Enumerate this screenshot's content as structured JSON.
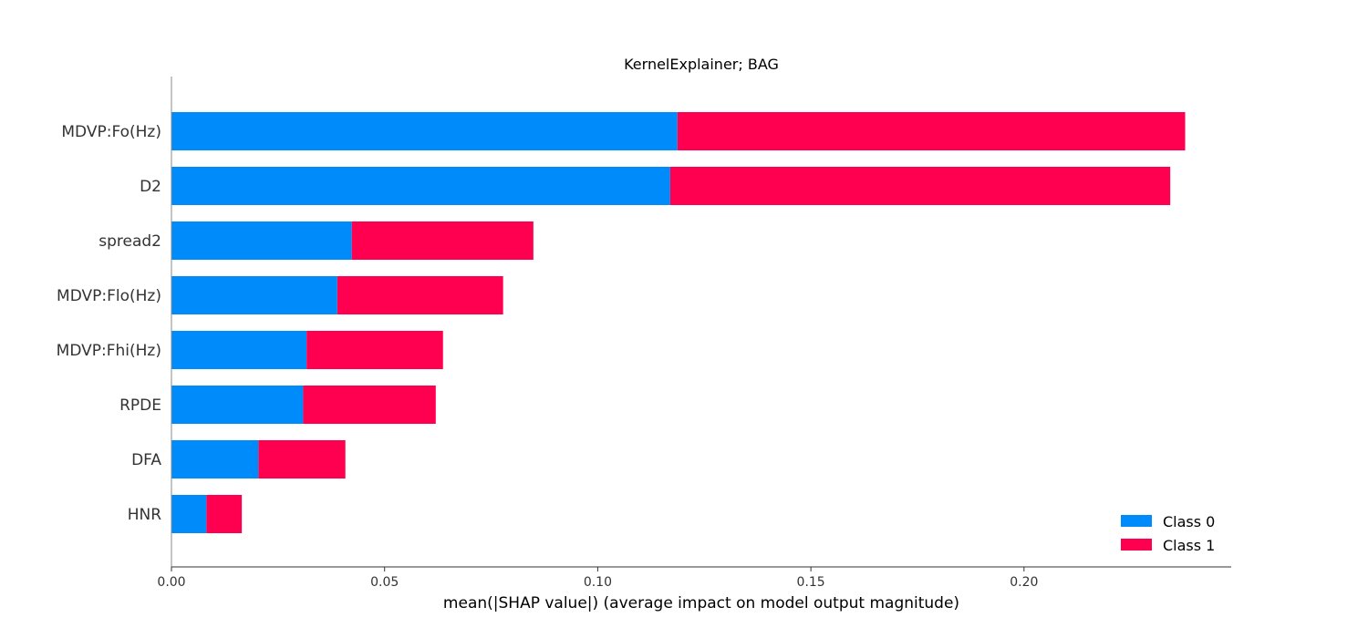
{
  "chart_data": {
    "type": "bar",
    "stacked": true,
    "orientation": "horizontal",
    "title": "KernelExplainer; BAG",
    "xlabel": "mean(|SHAP value|) (average impact on model output magnitude)",
    "ylabel": "",
    "xlim": [
      0,
      0.2486
    ],
    "x_ticks": [
      0.0,
      0.05,
      0.1,
      0.15,
      0.2
    ],
    "x_tick_labels": [
      "0.00",
      "0.05",
      "0.10",
      "0.15",
      "0.20"
    ],
    "categories": [
      "MDVP:Fo(Hz)",
      "D2",
      "spread2",
      "MDVP:Flo(Hz)",
      "MDVP:Fhi(Hz)",
      "RPDE",
      "DFA",
      "HNR"
    ],
    "series": [
      {
        "name": "Class 0",
        "color": "#008bfb",
        "values": [
          0.1187,
          0.117,
          0.0423,
          0.0389,
          0.0317,
          0.0309,
          0.0204,
          0.0082
        ]
      },
      {
        "name": "Class 1",
        "color": "#ff0051",
        "values": [
          0.1191,
          0.1173,
          0.0426,
          0.0389,
          0.032,
          0.0311,
          0.0204,
          0.0083
        ]
      }
    ],
    "grid": false,
    "legend_position": "lower-right"
  }
}
